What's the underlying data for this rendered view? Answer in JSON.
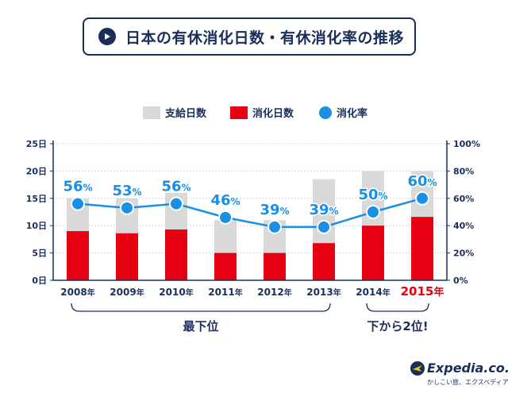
{
  "title": "日本の有休消化日数・有休消化率の推移",
  "legend": {
    "supply_label": "支給日数",
    "used_label": "消化日数",
    "rate_label": "消化率"
  },
  "colors": {
    "supply": "#d9d9d9",
    "used": "#e60012",
    "rate": "#1a8fe3",
    "title_navy": "#1a2e5a",
    "highlight_year": "#e60012"
  },
  "annotations": {
    "bottom_group": "最下位",
    "second_group": "下から2位!"
  },
  "logo": {
    "main": "Expedia.co.jp",
    "sub": "かしこい旅、エクスペディア"
  },
  "chart_data": {
    "type": "bar",
    "categories": [
      "2008年",
      "2009年",
      "2010年",
      "2011年",
      "2012年",
      "2013年",
      "2014年",
      "2015年"
    ],
    "highlight_category": "2015年",
    "series": [
      {
        "name": "支給日数",
        "kind": "bar",
        "values": [
          15,
          15,
          16,
          11,
          11,
          18.5,
          20,
          20
        ]
      },
      {
        "name": "消化日数",
        "kind": "bar",
        "values": [
          9,
          8.6,
          9.3,
          5,
          5,
          6.8,
          10,
          11.6
        ]
      },
      {
        "name": "消化率",
        "kind": "line",
        "axis": "right",
        "values": [
          56,
          53,
          56,
          46,
          39,
          39,
          50,
          60
        ],
        "labels": [
          "56%",
          "53%",
          "56%",
          "46%",
          "39%",
          "39%",
          "50%",
          "60%"
        ]
      }
    ],
    "left_axis": {
      "ticks": [
        "0日",
        "5日",
        "10日",
        "15日",
        "20日",
        "25日"
      ],
      "ylim": [
        0,
        25
      ]
    },
    "right_axis": {
      "ticks": [
        "0%",
        "20%",
        "40%",
        "60%",
        "80%",
        "100%"
      ],
      "ylim": [
        0,
        100
      ]
    },
    "grid": true,
    "legend_position": "top"
  }
}
